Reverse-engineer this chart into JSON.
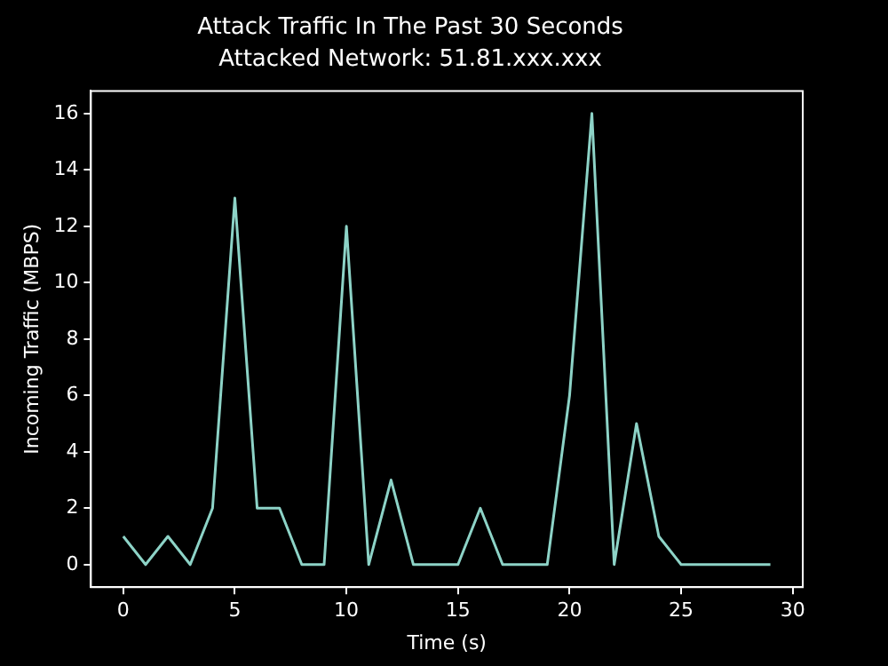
{
  "chart_data": {
    "type": "line",
    "title": "Attack Traffic In The Past 30 Seconds",
    "subtitle": "Attacked Network: 51.81.xxx.xxx",
    "xlabel": "Time (s)",
    "ylabel": "Incoming Traffic (MBPS)",
    "x": [
      0,
      1,
      2,
      3,
      4,
      5,
      6,
      7,
      8,
      9,
      10,
      11,
      12,
      13,
      14,
      15,
      16,
      17,
      18,
      19,
      20,
      21,
      22,
      23,
      24,
      25,
      26,
      27,
      28,
      29
    ],
    "series": [
      {
        "color": "#8dd3c7",
        "values": [
          1,
          0,
          1,
          0,
          2,
          13,
          2,
          2,
          0,
          0,
          12,
          0,
          3,
          0,
          0,
          0,
          2,
          0,
          0,
          0,
          6,
          16,
          0,
          5,
          1,
          0,
          0,
          0,
          0,
          0
        ]
      }
    ],
    "xlim": [
      -1.45,
      30.45
    ],
    "ylim": [
      -0.8,
      16.8
    ],
    "xticks": [
      0,
      5,
      10,
      15,
      20,
      25,
      30
    ],
    "yticks": [
      0,
      2,
      4,
      6,
      8,
      10,
      12,
      14,
      16
    ],
    "grid": false,
    "legend": false,
    "marker": "none",
    "line_style": "solid"
  }
}
